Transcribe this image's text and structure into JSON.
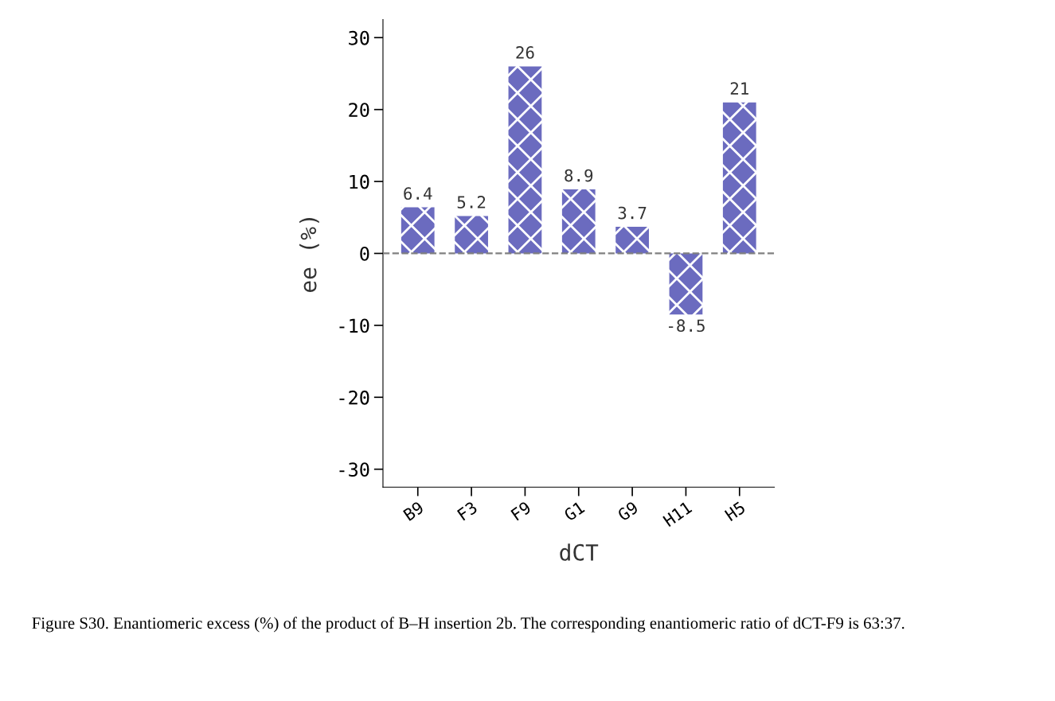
{
  "chart_data": {
    "type": "bar",
    "xlabel": "dCT",
    "ylabel": "ee (%)",
    "categories": [
      "B9",
      "F3",
      "F9",
      "G1",
      "G9",
      "H11",
      "H5"
    ],
    "values": [
      6.4,
      5.2,
      26,
      8.9,
      3.7,
      -8.5,
      21
    ],
    "color": "#6b6bbf",
    "data_labels": true,
    "ylim": [
      -32.5,
      32.5
    ],
    "yticks": [
      -30,
      -20,
      -10,
      0,
      10,
      20,
      30
    ],
    "ref_lines": [
      {
        "axis": "y",
        "value": 0,
        "color": "#808080",
        "line_style": "dashed"
      }
    ],
    "grid": false,
    "legend": false,
    "annotations": [
      "Figure S30. Enantiomeric excess (%) of the product of B–H insertion 2b. The corresponding enantiomeric ratio of dCT-F9 is 63:37."
    ]
  }
}
